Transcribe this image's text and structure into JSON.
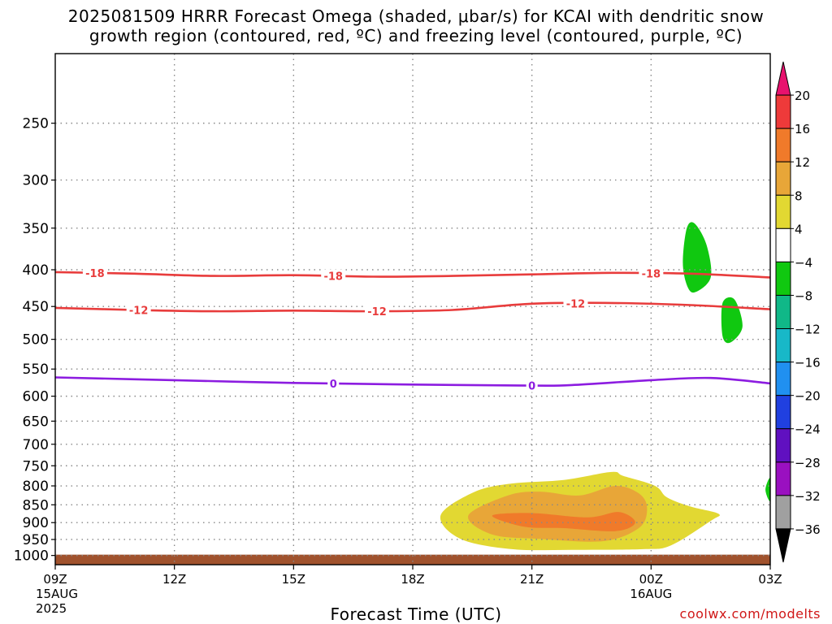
{
  "chart_data": {
    "type": "heatmap",
    "title": "2025081509 HRRR Forecast Omega (shaded, μbar/s) for KCAI with dendritic snow growth region (contoured, red, ºC) and freezing level (contoured, purple, ºC)",
    "title_line1": "2025081509 HRRR Forecast Omega (shaded, μbar/s) for KCAI with dendritic snow",
    "title_line2": "growth region (contoured, red, ºC) and freezing level (contoured, purple, ºC)",
    "xlabel": "Forecast Time (UTC)",
    "ylabel": "",
    "credit": "coolwx.com/modelts",
    "x_range_hours": [
      0,
      18
    ],
    "x_ticks": [
      {
        "hour": 0,
        "label": "09Z",
        "sub1": "15AUG",
        "sub2": "2025"
      },
      {
        "hour": 3,
        "label": "12Z"
      },
      {
        "hour": 6,
        "label": "15Z"
      },
      {
        "hour": 9,
        "label": "18Z"
      },
      {
        "hour": 12,
        "label": "21Z"
      },
      {
        "hour": 15,
        "label": "00Z",
        "sub1": "16AUG"
      },
      {
        "hour": 18,
        "label": "03Z"
      }
    ],
    "y_scale": "log-pressure",
    "y_range_hpa": [
      1030,
      200
    ],
    "y_ticks": [
      250,
      300,
      350,
      400,
      450,
      500,
      550,
      600,
      650,
      700,
      750,
      800,
      850,
      900,
      950,
      1000
    ],
    "grid": true,
    "colorbar": {
      "levels": [
        -36,
        -32,
        -28,
        -24,
        -20,
        -16,
        -12,
        -8,
        -4,
        4,
        8,
        12,
        16,
        20
      ],
      "labels": [
        "20",
        "16",
        "12",
        "8",
        "4",
        "−4",
        "−8",
        "−12",
        "−16",
        "−20",
        "−24",
        "−28",
        "−32",
        "−36"
      ],
      "colors_top_to_bottom": [
        "#e8126e",
        "#ee3a3a",
        "#f07a2a",
        "#e8a638",
        "#e2d832",
        "#ffffff",
        "#10c810",
        "#10b888",
        "#18b8c8",
        "#2090f0",
        "#2040e0",
        "#6010c0",
        "#9a10c0",
        "#a0a0a0",
        "#000000"
      ]
    },
    "contours": [
      {
        "color": "#e83c3c",
        "label": "-18",
        "hours": [
          0,
          2,
          4,
          6,
          8,
          10,
          12,
          14,
          16,
          18
        ],
        "pressure": [
          403,
          405,
          408,
          407,
          409,
          408,
          406,
          404,
          405,
          410
        ],
        "label_hours": [
          1.0,
          7.0,
          15.0
        ]
      },
      {
        "color": "#e83c3c",
        "label": "-12",
        "hours": [
          0,
          2,
          4,
          6,
          8,
          10,
          12,
          14,
          16,
          18
        ],
        "pressure": [
          452,
          455,
          457,
          456,
          457,
          455,
          446,
          445,
          448,
          454
        ],
        "label_hours": [
          2.1,
          8.1,
          13.1
        ]
      },
      {
        "color": "#8c1ce0",
        "label": "0",
        "hours": [
          0,
          3,
          6,
          9,
          12,
          13,
          15,
          16.5,
          18
        ],
        "pressure": [
          565,
          570,
          575,
          578,
          580,
          579,
          570,
          566,
          576
        ],
        "label_hours": [
          7.0,
          12.0
        ]
      }
    ],
    "shaded_regions": [
      {
        "value": 4,
        "color": "#e2d832",
        "hours": [
          9.7,
          10.5,
          11.4,
          12.8,
          14.0,
          14.3,
          15.1,
          15.4,
          16.0,
          16.7,
          16.5,
          15.5,
          14.8,
          13.0,
          11.5,
          10.2,
          9.7
        ],
        "pressure": [
          880,
          818,
          795,
          785,
          765,
          775,
          800,
          830,
          855,
          875,
          895,
          968,
          980,
          982,
          980,
          948,
          880
        ]
      },
      {
        "value": 8,
        "color": "#e8a638",
        "hours": [
          10.4,
          11.4,
          12.2,
          13.2,
          14.1,
          14.7,
          14.9,
          14.7,
          13.8,
          12.2,
          11.0,
          10.4
        ],
        "pressure": [
          880,
          825,
          815,
          825,
          800,
          820,
          860,
          915,
          955,
          948,
          935,
          880
        ]
      },
      {
        "value": 12,
        "color": "#f07a2a",
        "hours": [
          11.0,
          12.0,
          13.4,
          14.2,
          14.6,
          14.1,
          12.8,
          11.8,
          11.0
        ],
        "pressure": [
          880,
          873,
          885,
          870,
          900,
          925,
          916,
          912,
          880
        ]
      },
      {
        "value": -4,
        "color": "#10c810",
        "hours": [
          15.9,
          16.1,
          16.4,
          16.5,
          16.1,
          15.9,
          15.8,
          15.9
        ],
        "pressure": [
          350,
          345,
          370,
          410,
          430,
          420,
          390,
          350
        ]
      },
      {
        "value": -4,
        "color": "#10c810",
        "hours": [
          16.8,
          17.1,
          17.3,
          17.0,
          16.8,
          16.8
        ],
        "pressure": [
          445,
          440,
          480,
          505,
          495,
          445
        ]
      },
      {
        "value": -4,
        "color": "#10c810",
        "hours": [
          18.0,
          17.88,
          18.0,
          18.0
        ],
        "pressure": [
          780,
          810,
          840,
          780
        ]
      }
    ],
    "terrain_pressure": 1000,
    "terrain_color": "#a0522d",
    "grid_color": "#888888"
  }
}
